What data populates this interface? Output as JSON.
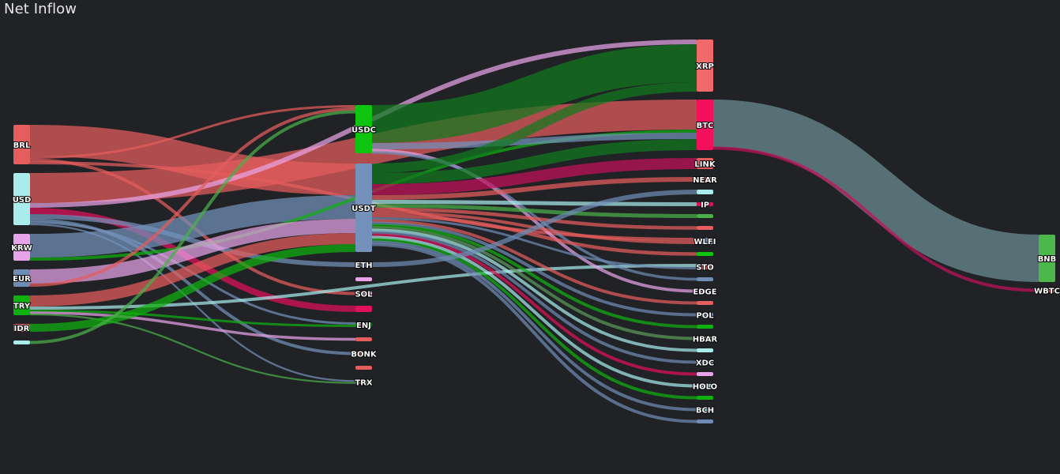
{
  "title": "Net Inflow",
  "chart_data": {
    "type": "sankey",
    "columns": [
      [
        "BRL",
        "USD",
        "KRW",
        "EUR",
        "TRY",
        "IDR",
        ""
      ],
      [
        "USDC",
        "USDT",
        "ETH",
        "",
        "SOL",
        "",
        "ENJ",
        "",
        "BONK",
        "",
        "TRX"
      ],
      [
        "XRP",
        "BTC",
        "LINK",
        "NEAR",
        "",
        "IP",
        "",
        "",
        "WLFI",
        "",
        "STO",
        "",
        "EDGE",
        "",
        "POL",
        "",
        "HBAR",
        "",
        "XDC",
        "",
        "HOLO",
        "",
        "BCH",
        ""
      ],
      [
        "BNB",
        "WBTC"
      ]
    ],
    "nodes": [
      {
        "id": "BRL",
        "label": "BRL",
        "color": "#e65d5d"
      },
      {
        "id": "USD",
        "label": "USD",
        "color": "#a8ecec"
      },
      {
        "id": "KRW",
        "label": "KRW",
        "color": "#e8a4e8"
      },
      {
        "id": "EUR",
        "label": "EUR",
        "color": "#6e8cb4"
      },
      {
        "id": "TRY",
        "label": "TRY",
        "color": "#0fb10f"
      },
      {
        "id": "IDR",
        "label": "IDR",
        "color": "#e65d5d"
      },
      {
        "id": "FIAT7",
        "label": "",
        "color": "#a8ecec"
      },
      {
        "id": "USDC",
        "label": "USDC",
        "color": "#0fc40f"
      },
      {
        "id": "USDT",
        "label": "USDT",
        "color": "#7391bb"
      },
      {
        "id": "ETH",
        "label": "ETH",
        "color": "#6e8cb4"
      },
      {
        "id": "M4",
        "label": "",
        "color": "#e8a4e8"
      },
      {
        "id": "SOL",
        "label": "SOL",
        "color": "#e8a4e8"
      },
      {
        "id": "M6",
        "label": "",
        "color": "#e0105a"
      },
      {
        "id": "ENJ",
        "label": "ENJ",
        "color": "#1a9a1a"
      },
      {
        "id": "M8",
        "label": "",
        "color": "#e65d5d"
      },
      {
        "id": "BONK",
        "label": "BONK",
        "color": "#e65d5d"
      },
      {
        "id": "M10",
        "label": "",
        "color": "#e65d5d"
      },
      {
        "id": "TRX",
        "label": "TRX",
        "color": "#5a7a5a"
      },
      {
        "id": "XRP",
        "label": "XRP",
        "color": "#f06a6a"
      },
      {
        "id": "BTC",
        "label": "BTC",
        "color": "#f5105e"
      },
      {
        "id": "LINK",
        "label": "LINK",
        "color": "#e65d5d"
      },
      {
        "id": "NEAR",
        "label": "NEAR",
        "color": "#e65d5d"
      },
      {
        "id": "T5",
        "label": "",
        "color": "#a8ecec"
      },
      {
        "id": "IP",
        "label": "IP",
        "color": "#e0105a"
      },
      {
        "id": "T7",
        "label": "",
        "color": "#4ab04a"
      },
      {
        "id": "T8",
        "label": "",
        "color": "#e65d5d"
      },
      {
        "id": "WLFI",
        "label": "WLFI",
        "color": "#6e8cb4"
      },
      {
        "id": "T10",
        "label": "",
        "color": "#0fc40f"
      },
      {
        "id": "STO",
        "label": "STO",
        "color": "#e65d5d"
      },
      {
        "id": "T12",
        "label": "",
        "color": "#6e8cb4"
      },
      {
        "id": "EDGE",
        "label": "EDGE",
        "color": "#e8a4e8"
      },
      {
        "id": "T14",
        "label": "",
        "color": "#e65d5d"
      },
      {
        "id": "POL",
        "label": "POL",
        "color": "#6e8cb4"
      },
      {
        "id": "T16",
        "label": "",
        "color": "#0fb10f"
      },
      {
        "id": "HBAR",
        "label": "HBAR",
        "color": "#5a9a5a"
      },
      {
        "id": "T18",
        "label": "",
        "color": "#a8ecec"
      },
      {
        "id": "XDC",
        "label": "XDC",
        "color": "#6e8cb4"
      },
      {
        "id": "T20",
        "label": "",
        "color": "#e8a4e8"
      },
      {
        "id": "HOLO",
        "label": "HOLO",
        "color": "#a8ecec"
      },
      {
        "id": "T22",
        "label": "",
        "color": "#0fb10f"
      },
      {
        "id": "BCH",
        "label": "BCH",
        "color": "#a8ecec"
      },
      {
        "id": "T24",
        "label": "",
        "color": "#6e8cb4"
      },
      {
        "id": "BNB",
        "label": "BNB",
        "color": "#4cb84c"
      },
      {
        "id": "WBTC",
        "label": "WBTC",
        "color": "#e65d5d"
      }
    ],
    "links": [
      {
        "source": "BRL",
        "target": "USDT",
        "value": 40,
        "color": "#e65d5d"
      },
      {
        "source": "BRL",
        "target": "USDC",
        "value": 3,
        "color": "#e65d5d"
      },
      {
        "source": "BRL",
        "target": "SOL",
        "value": 3,
        "color": "#e65d5d"
      },
      {
        "source": "BRL",
        "target": "WLFI",
        "value": 4,
        "color": "#e65d5d"
      },
      {
        "source": "USD",
        "target": "BTC",
        "value": 38,
        "color": "#e65d5d"
      },
      {
        "source": "USD",
        "target": "XRP",
        "value": 6,
        "color": "#e8a4e8"
      },
      {
        "source": "USD",
        "target": "M6",
        "value": 8,
        "color": "#e0105a"
      },
      {
        "source": "USD",
        "target": "ETH",
        "value": 6,
        "color": "#7391bb"
      },
      {
        "source": "USD",
        "target": "BONK",
        "value": 3,
        "color": "#7391bb"
      },
      {
        "source": "USD",
        "target": "ENJ",
        "value": 3,
        "color": "#7391bb"
      },
      {
        "source": "USD",
        "target": "TRX",
        "value": 2,
        "color": "#7391bb"
      },
      {
        "source": "KRW",
        "target": "USDT",
        "value": 30,
        "color": "#7391bb"
      },
      {
        "source": "KRW",
        "target": "BTC",
        "value": 4,
        "color": "#0fb10f"
      },
      {
        "source": "EUR",
        "target": "USDT",
        "value": 18,
        "color": "#e8a4e8"
      },
      {
        "source": "EUR",
        "target": "USDC",
        "value": 4,
        "color": "#e65d5d"
      },
      {
        "source": "TRY",
        "target": "USDT",
        "value": 14,
        "color": "#e65d5d"
      },
      {
        "source": "TRY",
        "target": "STO",
        "value": 4,
        "color": "#a8ecec"
      },
      {
        "source": "TRY",
        "target": "ENJ",
        "value": 3,
        "color": "#0fb10f"
      },
      {
        "source": "TRY",
        "target": "M8",
        "value": 2,
        "color": "#e8a4e8"
      },
      {
        "source": "TRY",
        "target": "TRX",
        "value": 2,
        "color": "#4ab04a"
      },
      {
        "source": "IDR",
        "target": "USDT",
        "value": 10,
        "color": "#0fb10f"
      },
      {
        "source": "FIAT7",
        "target": "USDC",
        "value": 3,
        "color": "#4ab04a"
      },
      {
        "source": "USDC",
        "target": "XRP",
        "value": 48,
        "color": "#0f7a1f"
      },
      {
        "source": "USDC",
        "target": "BTC",
        "value": 8,
        "color": "#7391bb"
      },
      {
        "source": "USDC",
        "target": "EDGE",
        "value": 3,
        "color": "#e8a4e8"
      },
      {
        "source": "USDC",
        "target": "T12",
        "value": 2,
        "color": "#6e8cb4"
      },
      {
        "source": "USDT",
        "target": "XRP",
        "value": 12,
        "color": "#0f7a1f"
      },
      {
        "source": "USDT",
        "target": "BTC",
        "value": 14,
        "color": "#0f7a1f"
      },
      {
        "source": "USDT",
        "target": "LINK",
        "value": 14,
        "color": "#c4105a"
      },
      {
        "source": "USDT",
        "target": "NEAR",
        "value": 6,
        "color": "#e65d5d"
      },
      {
        "source": "USDT",
        "target": "IP",
        "value": 5,
        "color": "#a8ecec"
      },
      {
        "source": "USDT",
        "target": "T7",
        "value": 5,
        "color": "#4ab04a"
      },
      {
        "source": "USDT",
        "target": "T8",
        "value": 4,
        "color": "#e65d5d"
      },
      {
        "source": "USDT",
        "target": "WLFI",
        "value": 4,
        "color": "#e65d5d"
      },
      {
        "source": "USDT",
        "target": "T10",
        "value": 4,
        "color": "#e65d5d"
      },
      {
        "source": "USDT",
        "target": "STO",
        "value": 3,
        "color": "#6e8cb4"
      },
      {
        "source": "USDT",
        "target": "T14",
        "value": 3,
        "color": "#e65d5d"
      },
      {
        "source": "USDT",
        "target": "POL",
        "value": 3,
        "color": "#6e8cb4"
      },
      {
        "source": "USDT",
        "target": "T16",
        "value": 3,
        "color": "#0fb10f"
      },
      {
        "source": "USDT",
        "target": "HBAR",
        "value": 3,
        "color": "#5a9a5a"
      },
      {
        "source": "USDT",
        "target": "T18",
        "value": 3,
        "color": "#a8ecec"
      },
      {
        "source": "USDT",
        "target": "XDC",
        "value": 3,
        "color": "#6e8cb4"
      },
      {
        "source": "USDT",
        "target": "T20",
        "value": 3,
        "color": "#e0105a"
      },
      {
        "source": "USDT",
        "target": "HOLO",
        "value": 3,
        "color": "#a8ecec"
      },
      {
        "source": "USDT",
        "target": "T22",
        "value": 3,
        "color": "#0fb10f"
      },
      {
        "source": "USDT",
        "target": "BCH",
        "value": 3,
        "color": "#6e8cb4"
      },
      {
        "source": "USDT",
        "target": "T24",
        "value": 3,
        "color": "#6e8cb4"
      },
      {
        "source": "ETH",
        "target": "T5",
        "value": 6,
        "color": "#6e8cb4"
      },
      {
        "source": "BTC",
        "target": "BNB",
        "value": 60,
        "color": "#6c8f94"
      },
      {
        "source": "BTC",
        "target": "WBTC",
        "value": 3,
        "color": "#c4105a"
      }
    ]
  }
}
